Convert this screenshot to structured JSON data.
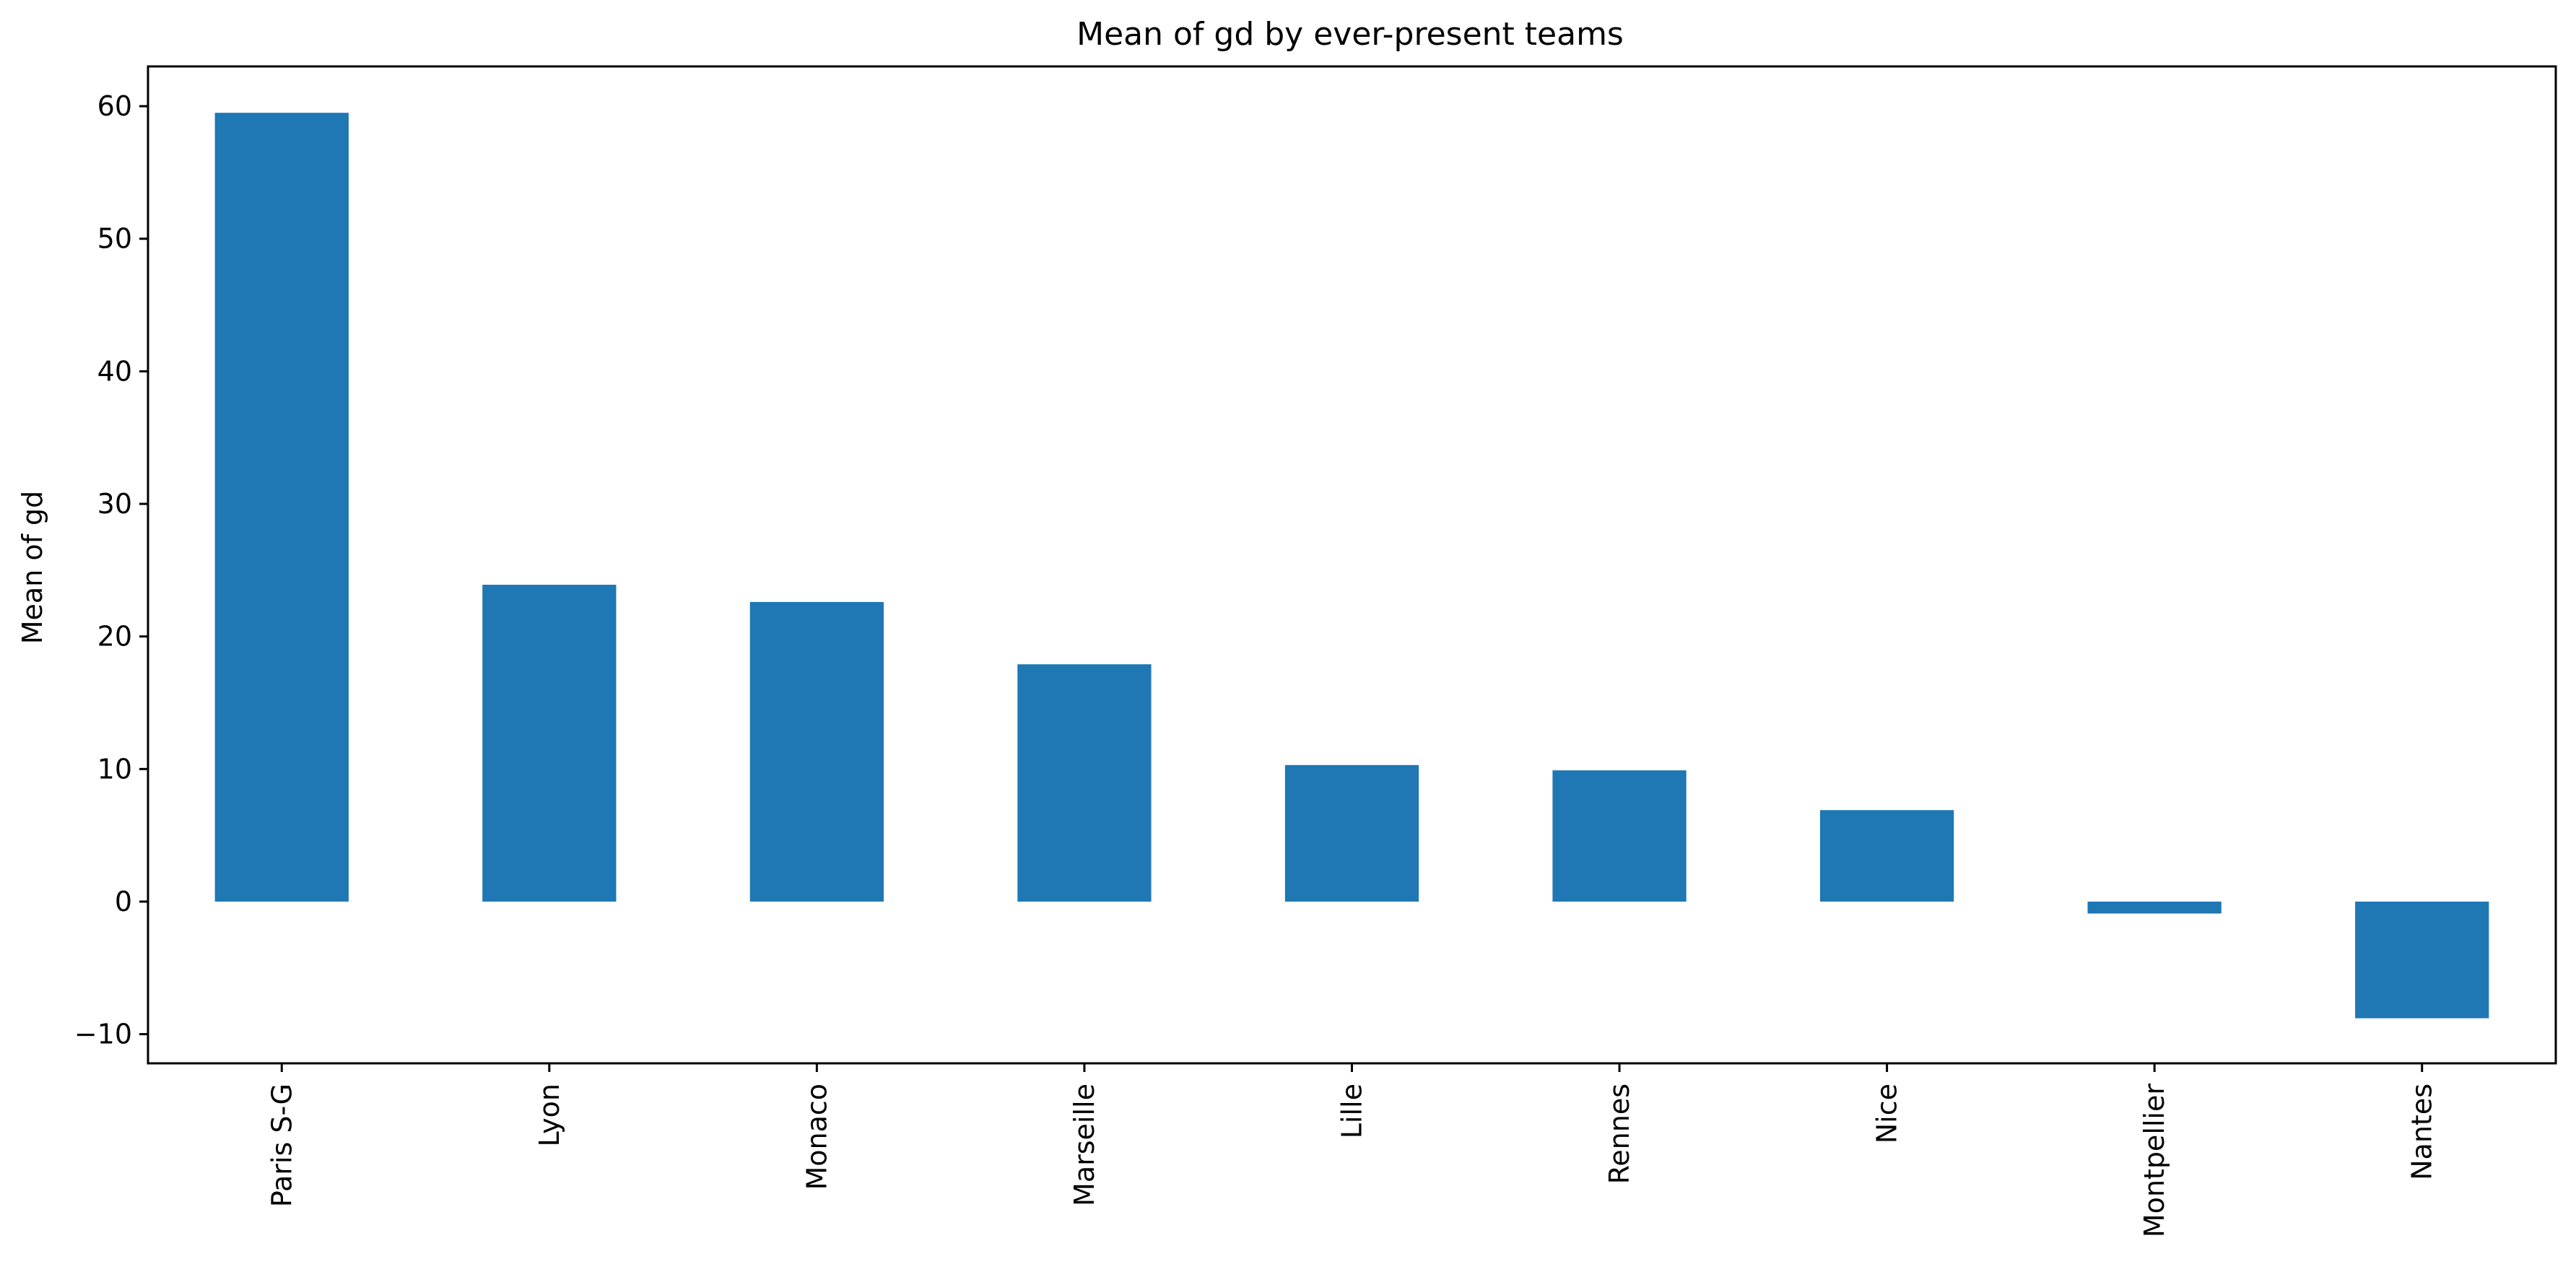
{
  "chart_data": {
    "type": "bar",
    "title": "Mean of gd by ever-present teams",
    "xlabel": "",
    "ylabel": "Mean of gd",
    "categories": [
      "Paris S-G",
      "Lyon",
      "Monaco",
      "Marseille",
      "Lille",
      "Rennes",
      "Nice",
      "Montpellier",
      "Nantes"
    ],
    "values": [
      59.5,
      23.9,
      22.6,
      17.9,
      10.3,
      9.9,
      6.9,
      -0.9,
      -8.8
    ],
    "ylim": [
      -12.2,
      63.0
    ],
    "yticks": [
      -10,
      0,
      10,
      20,
      30,
      40,
      50,
      60
    ],
    "ytick_labels": [
      "−10",
      "0",
      "10",
      "20",
      "30",
      "40",
      "50",
      "60"
    ],
    "grid": false,
    "legend": "none",
    "colors": {
      "bar": "#1f77b4",
      "axis": "#000000",
      "background": "#ffffff"
    }
  }
}
